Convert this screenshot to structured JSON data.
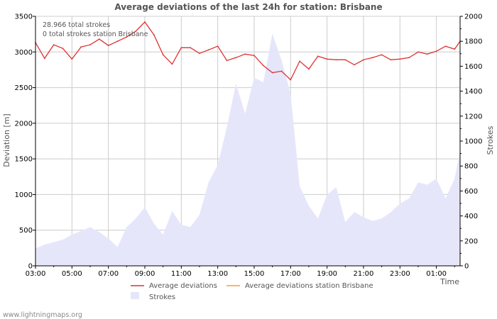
{
  "chart_data": {
    "type": "line",
    "title": "Average deviations of the last 24h for station: Brisbane",
    "xlabel": "Time",
    "ylabel": "Deviation  [m]",
    "y2label": "Strokes",
    "ylim": [
      0,
      3500
    ],
    "y2lim": [
      0,
      2000
    ],
    "yticks": [
      0,
      500,
      1000,
      1500,
      2000,
      2500,
      3000,
      3500
    ],
    "y2ticks": [
      0,
      200,
      400,
      600,
      800,
      1000,
      1200,
      1400,
      1600,
      1800,
      2000
    ],
    "x_range_hours": [
      0,
      23.3
    ],
    "x_ticks": [
      {
        "h": 0,
        "label": "03:00"
      },
      {
        "h": 2,
        "label": "05:00"
      },
      {
        "h": 4,
        "label": "07:00"
      },
      {
        "h": 6,
        "label": "09:00"
      },
      {
        "h": 8,
        "label": "11:00"
      },
      {
        "h": 10,
        "label": "13:00"
      },
      {
        "h": 12,
        "label": "15:00"
      },
      {
        "h": 14,
        "label": "17:00"
      },
      {
        "h": 16,
        "label": "19:00"
      },
      {
        "h": 18,
        "label": "21:00"
      },
      {
        "h": 20,
        "label": "23:00"
      },
      {
        "h": 22,
        "label": "01:00"
      }
    ],
    "annotations": [
      "28.966 total strokes",
      "0 total strokes station Brisbane"
    ],
    "series": [
      {
        "name": "Average deviations",
        "color": "#dd3333",
        "axis": "left",
        "x": [
          0,
          0.5,
          1,
          1.5,
          2,
          2.5,
          3,
          3.5,
          4,
          4.5,
          5,
          5.5,
          6,
          6.5,
          7,
          7.5,
          8,
          8.5,
          9,
          9.5,
          10,
          10.5,
          11,
          11.5,
          12,
          12.5,
          13,
          13.5,
          14,
          14.5,
          15,
          15.5,
          16,
          16.5,
          17,
          17.5,
          18,
          18.5,
          19,
          19.5,
          20,
          20.5,
          21,
          21.5,
          22,
          22.5,
          23,
          23.3
        ],
        "values": [
          3130,
          2910,
          3100,
          3050,
          2900,
          3070,
          3100,
          3180,
          3090,
          3150,
          3210,
          3290,
          3420,
          3240,
          2960,
          2830,
          3060,
          3060,
          2980,
          3030,
          3080,
          2880,
          2920,
          2970,
          2950,
          2810,
          2710,
          2730,
          2610,
          2870,
          2760,
          2940,
          2900,
          2890,
          2890,
          2820,
          2890,
          2920,
          2960,
          2890,
          2900,
          2920,
          3000,
          2970,
          3010,
          3080,
          3040,
          3150
        ]
      },
      {
        "name": "Average deviations station Brisbane",
        "color": "#f0a040",
        "axis": "left",
        "x": [],
        "values": []
      },
      {
        "name": "Strokes",
        "color": "#e6e6fb",
        "axis": "right",
        "x": [
          0,
          0.5,
          1,
          1.5,
          2,
          2.5,
          3,
          3.5,
          4,
          4.5,
          5,
          5.5,
          6,
          6.5,
          7,
          7.5,
          8,
          8.5,
          9,
          9.5,
          10,
          10.5,
          11,
          11.5,
          12,
          12.5,
          13,
          13.5,
          14,
          14.5,
          15,
          15.5,
          16,
          16.5,
          17,
          17.5,
          18,
          18.5,
          19,
          19.5,
          20,
          20.5,
          21,
          21.5,
          22,
          22.5,
          23,
          23.3
        ],
        "values": [
          140,
          170,
          190,
          210,
          250,
          280,
          310,
          270,
          220,
          150,
          310,
          380,
          470,
          340,
          250,
          440,
          330,
          310,
          410,
          670,
          810,
          1110,
          1460,
          1220,
          1510,
          1470,
          1860,
          1650,
          1380,
          640,
          480,
          380,
          570,
          630,
          350,
          430,
          390,
          360,
          380,
          430,
          500,
          540,
          670,
          650,
          700,
          540,
          700,
          920
        ]
      }
    ]
  },
  "footer": {
    "credit": "www.lightningmaps.org"
  }
}
